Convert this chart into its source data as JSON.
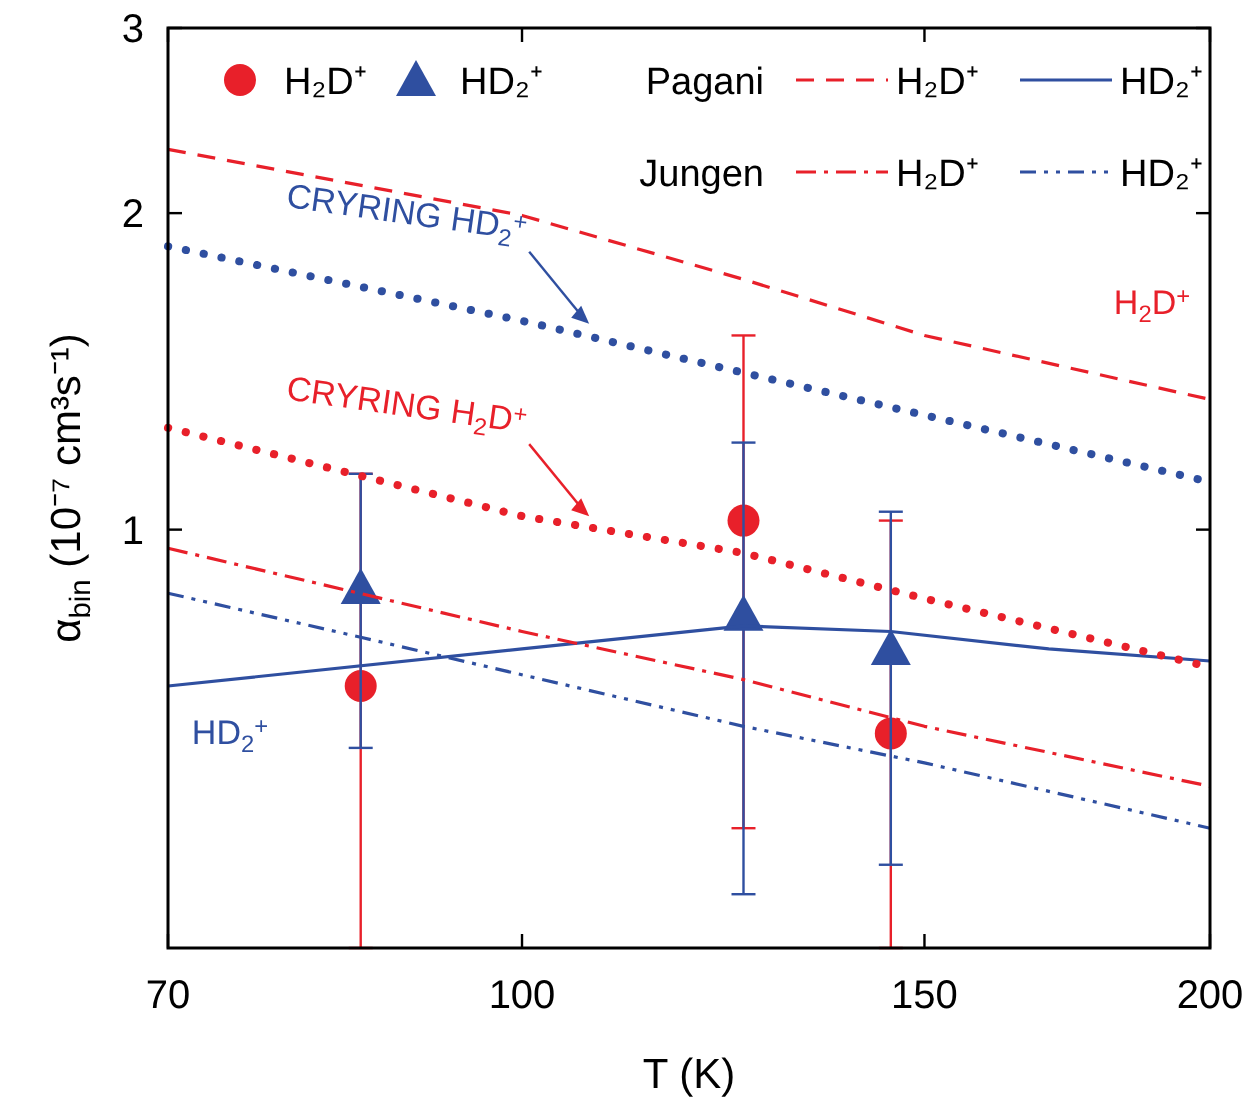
{
  "chart_data": {
    "type": "line",
    "xlabel": "T (K)",
    "ylabel": "α$_{bin}$ (10⁻⁷ cm³s⁻¹)",
    "log": "xy",
    "xlim": [
      70,
      200
    ],
    "xticks": [
      70,
      100,
      150,
      200
    ],
    "ylim": [
      0.4,
      3
    ],
    "yticks": [
      1,
      2,
      3
    ],
    "legend": "top",
    "grid": false,
    "series": [
      {
        "type": "scatter",
        "name": "H₂D⁺",
        "color": "#e8202a",
        "marker": "circle",
        "x": [
          85,
          125,
          145
        ],
        "values": [
          0.71,
          1.02,
          0.64
        ],
        "errors": [
          [
            0.4,
            1.13
          ],
          [
            0.52,
            1.53
          ],
          [
            0.4,
            1.02
          ]
        ]
      },
      {
        "type": "scatter",
        "name": "HD₂⁺",
        "color": "#2f4fa0",
        "marker": "triangle",
        "x": [
          85,
          125,
          145
        ],
        "values": [
          0.88,
          0.83,
          0.77
        ],
        "errors": [
          [
            0.62,
            1.13
          ],
          [
            0.45,
            1.21
          ],
          [
            0.48,
            1.04
          ]
        ]
      },
      {
        "name": "H₂D⁺",
        "color": "#e8202a",
        "line_style": "dashed",
        "x": [
          70,
          100,
          125,
          150,
          200
        ],
        "values": [
          2.3,
          1.99,
          1.73,
          1.53,
          1.33
        ]
      },
      {
        "name": "HD₂⁺",
        "color": "#2f4fa0",
        "line_style": "solid",
        "x": [
          70,
          100,
          125,
          145,
          170,
          200
        ],
        "values": [
          0.71,
          0.77,
          0.81,
          0.8,
          0.77,
          0.75
        ]
      },
      {
        "name": "H₂D⁺",
        "color": "#e8202a",
        "line_style": "dashdot",
        "x": [
          70,
          100,
          125,
          150,
          200
        ],
        "values": [
          0.96,
          0.8,
          0.72,
          0.65,
          0.57
        ]
      },
      {
        "name": "HD₂⁺",
        "color": "#2f4fa0",
        "line_style": "dashdotdot",
        "x": [
          70,
          85,
          125,
          150,
          200
        ],
        "values": [
          0.87,
          0.79,
          0.65,
          0.6,
          0.52
        ]
      },
      {
        "color": "#2f4fa0",
        "line_style": "dotted",
        "x": [
          70,
          100,
          125,
          200
        ],
        "values": [
          1.86,
          1.58,
          1.41,
          1.11
        ]
      },
      {
        "color": "#e8202a",
        "line_style": "dotted",
        "x": [
          70,
          100,
          125,
          150,
          200
        ],
        "values": [
          1.25,
          1.03,
          0.95,
          0.86,
          0.74
        ]
      }
    ],
    "annotations": [
      "Pagani",
      "Jungen",
      {
        "text": "CRYRING HD$_{2}$$^{+}$",
        "x": 107,
        "y": 1.57
      },
      {
        "text": "CRYRING H$_{2}$D$^{+}$",
        "x": 107,
        "y": 1.03
      },
      "H$_{2}$D$^{+}$",
      "HD$_{2}$$^{+}$"
    ]
  }
}
